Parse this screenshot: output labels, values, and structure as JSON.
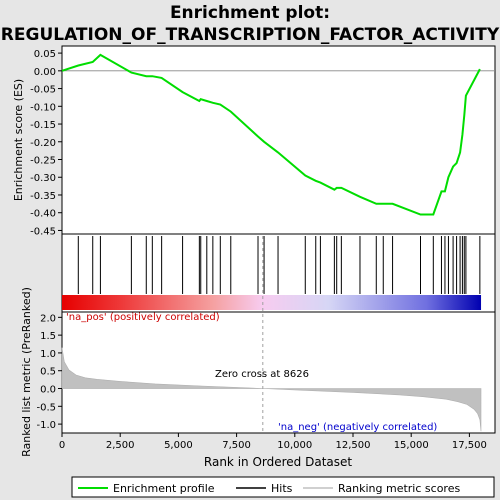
{
  "page": {
    "title_line1": "Enrichment plot:",
    "title_line2": "REGULATION_OF_TRANSCRIPTION_FACTOR_ACTIVITY"
  },
  "colors": {
    "background": "#e6e6e6",
    "enrichment_line": "#00dd00",
    "hits": "#000000",
    "metric_fill": "#c0c0c0",
    "zero_cross_line": "#a0a0a0",
    "pos_label": "#cc0000",
    "neg_label": "#0000cc"
  },
  "chart_data": [
    {
      "type": "line",
      "name": "enrichment_profile",
      "ylabel": "Enrichment score (ES)",
      "xlim": [
        0,
        18600
      ],
      "ylim": [
        -0.46,
        0.07
      ],
      "yticks": [
        "0.05",
        "0.00",
        "-0.05",
        "-0.10",
        "-0.15",
        "-0.20",
        "-0.25",
        "-0.30",
        "-0.35",
        "-0.40",
        "-0.45"
      ],
      "ytick_values": [
        0.05,
        0.0,
        -0.05,
        -0.1,
        -0.15,
        -0.2,
        -0.25,
        -0.3,
        -0.35,
        -0.4,
        -0.45
      ],
      "grid": false,
      "hits": [
        700,
        1320,
        1650,
        2980,
        3620,
        3880,
        4280,
        5180,
        5900,
        5960,
        6220,
        6480,
        6800,
        7250,
        8420,
        8680,
        9280,
        10450,
        10900,
        11100,
        11700,
        11800,
        12000,
        12800,
        13500,
        13800,
        14200,
        15400,
        15950,
        16300,
        16450,
        16600,
        16800,
        16950,
        17100,
        17200,
        17280,
        17350,
        17950
      ],
      "x": [
        0,
        700,
        1320,
        1650,
        2980,
        3620,
        3880,
        4280,
        5180,
        5900,
        5960,
        6220,
        6480,
        6800,
        7250,
        8420,
        8680,
        9280,
        10450,
        10900,
        11100,
        11700,
        11800,
        12000,
        12800,
        13500,
        13800,
        14200,
        15400,
        15950,
        16300,
        16450,
        16600,
        16800,
        16950,
        17100,
        17200,
        17280,
        17350,
        17950
      ],
      "y": [
        0.0,
        0.015,
        0.025,
        0.045,
        -0.005,
        -0.015,
        -0.015,
        -0.02,
        -0.06,
        -0.085,
        -0.08,
        -0.085,
        -0.09,
        -0.095,
        -0.115,
        -0.185,
        -0.2,
        -0.23,
        -0.295,
        -0.31,
        -0.315,
        -0.335,
        -0.33,
        -0.33,
        -0.355,
        -0.375,
        -0.375,
        -0.375,
        -0.405,
        -0.405,
        -0.34,
        -0.34,
        -0.3,
        -0.27,
        -0.26,
        -0.23,
        -0.18,
        -0.125,
        -0.07,
        0.005
      ]
    },
    {
      "type": "heatmap",
      "name": "rank_color_bar",
      "labels": [
        "'na_pos' (positively correlated)",
        "'na_neg' (negatively correlated)"
      ]
    },
    {
      "type": "area",
      "name": "ranked_list_metric",
      "xlabel": "Rank in Ordered Dataset",
      "ylabel": "Ranked list metric (PreRanked)",
      "xlim": [
        0,
        18600
      ],
      "ylim": [
        -1.25,
        2.15
      ],
      "xticks": [
        "0",
        "2,500",
        "5,000",
        "7,500",
        "10,000",
        "12,500",
        "15,000",
        "17,500"
      ],
      "xtick_values": [
        0,
        2500,
        5000,
        7500,
        10000,
        12500,
        15000,
        17500
      ],
      "yticks": [
        "2.0",
        "1.5",
        "1.0",
        "0.5",
        "0.0",
        "-0.5",
        "-1.0"
      ],
      "ytick_values": [
        2.0,
        1.5,
        1.0,
        0.5,
        0.0,
        -0.5,
        -1.0
      ],
      "zero_cross": 8626,
      "zero_cross_label": "Zero cross at 8626",
      "x": [
        0,
        100,
        300,
        600,
        1000,
        1500,
        2500,
        4000,
        6000,
        8626,
        10000,
        12500,
        14500,
        15500,
        16500,
        17000,
        17400,
        17700,
        17850,
        17950,
        18000
      ],
      "y": [
        1.15,
        0.75,
        0.52,
        0.38,
        0.3,
        0.26,
        0.2,
        0.13,
        0.07,
        0.0,
        -0.04,
        -0.11,
        -0.18,
        -0.23,
        -0.3,
        -0.37,
        -0.45,
        -0.58,
        -0.7,
        -0.88,
        -1.2
      ]
    }
  ],
  "legend": {
    "items": [
      {
        "label": "Enrichment profile",
        "color": "#00dd00"
      },
      {
        "label": "Hits",
        "color": "#000000"
      },
      {
        "label": "Ranking metric scores",
        "color": "#c0c0c0"
      }
    ]
  }
}
